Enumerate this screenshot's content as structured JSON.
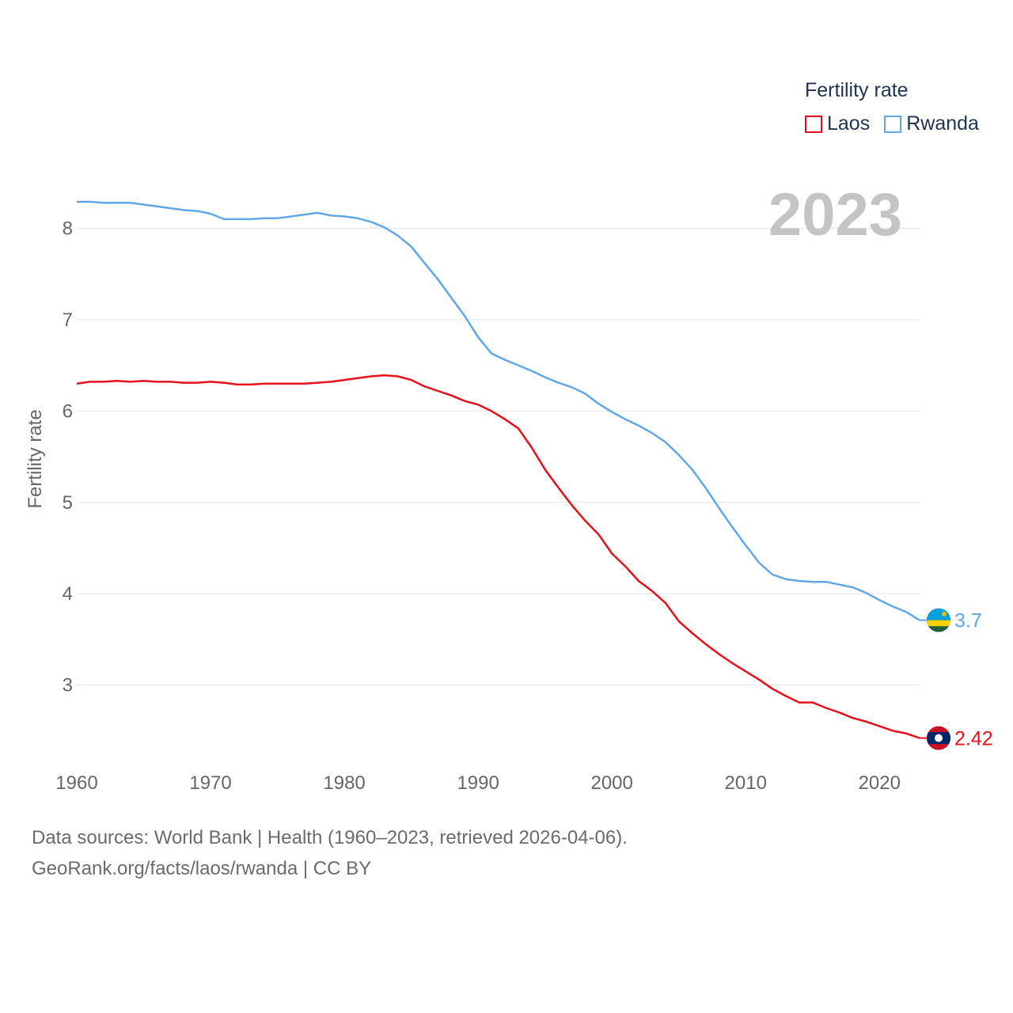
{
  "chart_data": {
    "type": "line",
    "title": "Fertility rate",
    "current_year": "2023",
    "xlabel": "",
    "ylabel": "Fertility rate",
    "xlim": [
      1960,
      2023
    ],
    "ylim": [
      2.2,
      8.55
    ],
    "x_ticks": [
      1960,
      1970,
      1980,
      1990,
      2000,
      2010,
      2020
    ],
    "y_ticks": [
      3,
      4,
      5,
      6,
      7,
      8
    ],
    "grid": true,
    "legend_position": "top-right",
    "x": [
      1960,
      1961,
      1962,
      1963,
      1964,
      1965,
      1966,
      1967,
      1968,
      1969,
      1970,
      1971,
      1972,
      1973,
      1974,
      1975,
      1976,
      1977,
      1978,
      1979,
      1980,
      1981,
      1982,
      1983,
      1984,
      1985,
      1986,
      1987,
      1988,
      1989,
      1990,
      1991,
      1992,
      1993,
      1994,
      1995,
      1996,
      1997,
      1998,
      1999,
      2000,
      2001,
      2002,
      2003,
      2004,
      2005,
      2006,
      2007,
      2008,
      2009,
      2010,
      2011,
      2012,
      2013,
      2014,
      2015,
      2016,
      2017,
      2018,
      2019,
      2020,
      2021,
      2022,
      2023
    ],
    "series": [
      {
        "name": "Laos",
        "color": "#e8101b",
        "end_label": "2.42",
        "end_icon": "laos-flag-icon",
        "values": [
          6.3,
          6.32,
          6.32,
          6.33,
          6.32,
          6.33,
          6.32,
          6.32,
          6.31,
          6.31,
          6.32,
          6.31,
          6.29,
          6.29,
          6.3,
          6.3,
          6.3,
          6.3,
          6.31,
          6.32,
          6.34,
          6.36,
          6.38,
          6.39,
          6.38,
          6.34,
          6.27,
          6.22,
          6.17,
          6.11,
          6.07,
          6.0,
          5.91,
          5.81,
          5.6,
          5.36,
          5.16,
          4.97,
          4.8,
          4.65,
          4.44,
          4.3,
          4.14,
          4.03,
          3.9,
          3.7,
          3.57,
          3.45,
          3.34,
          3.24,
          3.15,
          3.06,
          2.96,
          2.88,
          2.81,
          2.81,
          2.75,
          2.7,
          2.64,
          2.6,
          2.55,
          2.5,
          2.47,
          2.42
        ]
      },
      {
        "name": "Rwanda",
        "color": "#61a8e8",
        "end_label": "3.7",
        "end_icon": "rwanda-flag-icon",
        "values": [
          8.29,
          8.29,
          8.28,
          8.28,
          8.28,
          8.26,
          8.24,
          8.22,
          8.2,
          8.19,
          8.16,
          8.1,
          8.1,
          8.1,
          8.11,
          8.11,
          8.13,
          8.15,
          8.17,
          8.14,
          8.13,
          8.11,
          8.07,
          8.01,
          7.92,
          7.8,
          7.62,
          7.44,
          7.24,
          7.04,
          6.81,
          6.63,
          6.56,
          6.5,
          6.44,
          6.37,
          6.31,
          6.26,
          6.19,
          6.08,
          5.99,
          5.91,
          5.84,
          5.76,
          5.66,
          5.52,
          5.36,
          5.16,
          4.94,
          4.73,
          4.53,
          4.34,
          4.21,
          4.16,
          4.14,
          4.13,
          4.13,
          4.1,
          4.07,
          4.01,
          3.93,
          3.86,
          3.8,
          3.71
        ]
      }
    ]
  },
  "footer": {
    "sources": "Data sources: World Bank | Health (1960–2023, retrieved 2026-04-06).",
    "credit": "GeoRank.org/facts/laos/rwanda | CC BY"
  }
}
